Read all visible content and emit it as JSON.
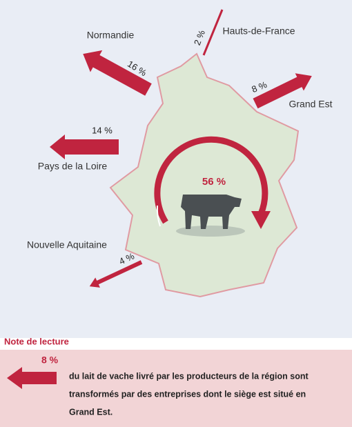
{
  "map": {
    "flows": [
      {
        "region": "Normandie",
        "share": "16 %"
      },
      {
        "region": "Hauts-de-France",
        "share": "2 %"
      },
      {
        "region": "Grand Est",
        "share": "8 %"
      },
      {
        "region": "Pays de la Loire",
        "share": "14 %"
      },
      {
        "region": "Nouvelle Aquitaine",
        "share": "4 %"
      }
    ],
    "center_share": "56 %"
  },
  "note": {
    "title": "Note de lecture",
    "share": "8 %",
    "lines": [
      "du lait de vache livré par les producteurs de la région sont",
      "transformés par des entreprises dont le siège est situé en",
      "Grand Est."
    ]
  }
}
